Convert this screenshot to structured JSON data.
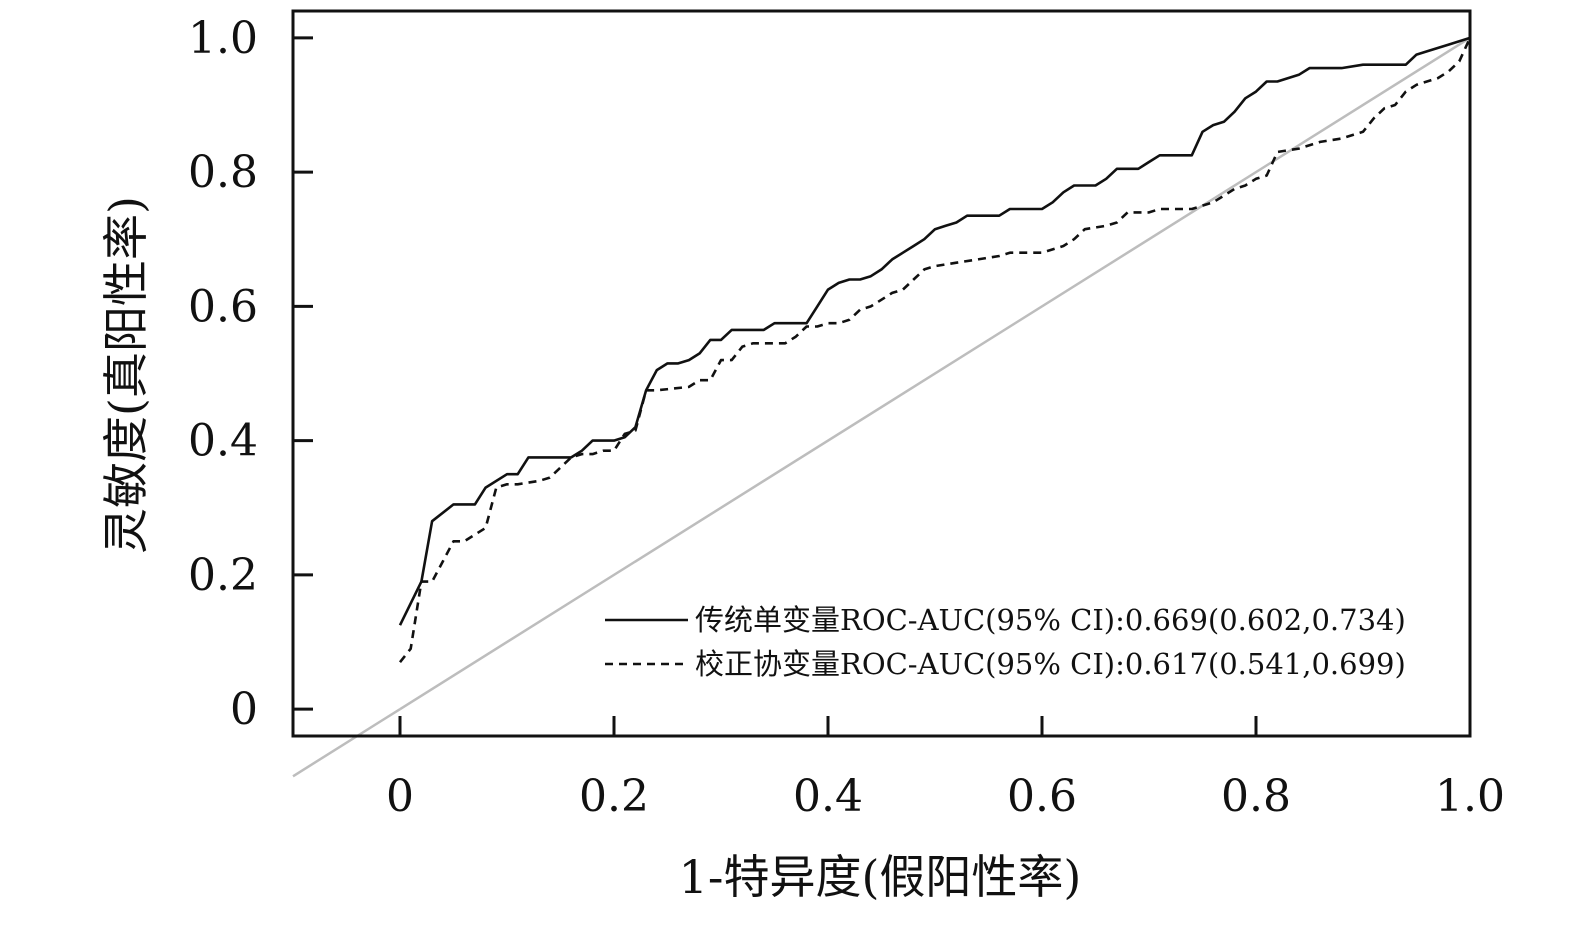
{
  "chart_data": {
    "type": "line",
    "title": "",
    "xlabel": "1-特异度(假阳性率)",
    "ylabel": "灵敏度(真阳性率)",
    "xlim": [
      -0.1,
      1.0
    ],
    "ylim": [
      -0.04,
      1.04
    ],
    "x_ticks": [
      0,
      0.2,
      0.4,
      0.6,
      0.8,
      1.0
    ],
    "x_tick_labels": [
      "0",
      "0.2",
      "0.4",
      "0.6",
      "0.8",
      "1.0"
    ],
    "y_ticks": [
      0,
      0.2,
      0.4,
      0.6,
      0.8,
      1.0
    ],
    "y_tick_labels": [
      "0",
      "0.2",
      "0.4",
      "0.6",
      "0.8",
      "1.0"
    ],
    "grid": false,
    "legend_position": "bottom-right",
    "reference_line": {
      "x": [
        0,
        1.0
      ],
      "y": [
        0,
        1.0
      ],
      "color": "#bdbdbd"
    },
    "series": [
      {
        "name": "传统单变量ROC-AUC(95% CI):0.669(0.602,0.734)",
        "style": "solid",
        "color": "#111111",
        "x": [
          0,
          0.02,
          0.03,
          0.05,
          0.07,
          0.08,
          0.1,
          0.11,
          0.12,
          0.14,
          0.16,
          0.17,
          0.18,
          0.2,
          0.21,
          0.22,
          0.23,
          0.24,
          0.25,
          0.26,
          0.27,
          0.28,
          0.29,
          0.3,
          0.31,
          0.32,
          0.34,
          0.35,
          0.38,
          0.39,
          0.4,
          0.41,
          0.42,
          0.43,
          0.44,
          0.45,
          0.46,
          0.47,
          0.48,
          0.49,
          0.5,
          0.51,
          0.52,
          0.53,
          0.56,
          0.57,
          0.6,
          0.61,
          0.62,
          0.63,
          0.65,
          0.66,
          0.67,
          0.69,
          0.7,
          0.71,
          0.74,
          0.75,
          0.76,
          0.77,
          0.78,
          0.79,
          0.8,
          0.81,
          0.82,
          0.84,
          0.85,
          0.86,
          0.88,
          0.9,
          0.91,
          0.94,
          0.95,
          0.96,
          0.98,
          1.0
        ],
        "y": [
          0.125,
          0.19,
          0.28,
          0.305,
          0.305,
          0.33,
          0.35,
          0.35,
          0.375,
          0.375,
          0.375,
          0.385,
          0.4,
          0.4,
          0.405,
          0.42,
          0.475,
          0.505,
          0.515,
          0.515,
          0.52,
          0.53,
          0.55,
          0.55,
          0.565,
          0.565,
          0.565,
          0.575,
          0.575,
          0.6,
          0.625,
          0.635,
          0.64,
          0.64,
          0.645,
          0.655,
          0.67,
          0.68,
          0.69,
          0.7,
          0.715,
          0.72,
          0.725,
          0.735,
          0.735,
          0.745,
          0.745,
          0.755,
          0.77,
          0.78,
          0.78,
          0.79,
          0.805,
          0.805,
          0.815,
          0.825,
          0.825,
          0.86,
          0.87,
          0.875,
          0.89,
          0.91,
          0.92,
          0.935,
          0.935,
          0.945,
          0.955,
          0.955,
          0.955,
          0.96,
          0.96,
          0.96,
          0.975,
          0.98,
          0.99,
          1.0
        ]
      },
      {
        "name": "校正协变量ROC-AUC(95% CI):0.617(0.541,0.699)",
        "style": "dashed",
        "color": "#111111",
        "x": [
          0,
          0.01,
          0.02,
          0.03,
          0.04,
          0.05,
          0.06,
          0.07,
          0.08,
          0.09,
          0.1,
          0.11,
          0.13,
          0.14,
          0.15,
          0.16,
          0.17,
          0.18,
          0.19,
          0.2,
          0.21,
          0.22,
          0.23,
          0.24,
          0.27,
          0.28,
          0.29,
          0.3,
          0.31,
          0.32,
          0.33,
          0.34,
          0.35,
          0.36,
          0.37,
          0.38,
          0.39,
          0.4,
          0.41,
          0.42,
          0.43,
          0.44,
          0.45,
          0.46,
          0.47,
          0.48,
          0.49,
          0.5,
          0.52,
          0.54,
          0.56,
          0.57,
          0.6,
          0.62,
          0.63,
          0.64,
          0.66,
          0.67,
          0.68,
          0.7,
          0.71,
          0.74,
          0.76,
          0.77,
          0.78,
          0.79,
          0.8,
          0.81,
          0.82,
          0.84,
          0.86,
          0.88,
          0.9,
          0.91,
          0.92,
          0.93,
          0.94,
          0.95,
          0.97,
          0.98,
          0.99,
          1.0
        ],
        "y": [
          0.07,
          0.09,
          0.19,
          0.19,
          0.22,
          0.25,
          0.25,
          0.26,
          0.27,
          0.33,
          0.335,
          0.335,
          0.34,
          0.345,
          0.36,
          0.375,
          0.38,
          0.38,
          0.385,
          0.385,
          0.41,
          0.415,
          0.475,
          0.475,
          0.48,
          0.49,
          0.49,
          0.52,
          0.52,
          0.54,
          0.545,
          0.545,
          0.545,
          0.545,
          0.555,
          0.57,
          0.57,
          0.575,
          0.575,
          0.58,
          0.595,
          0.6,
          0.61,
          0.62,
          0.625,
          0.64,
          0.655,
          0.66,
          0.665,
          0.67,
          0.675,
          0.68,
          0.68,
          0.69,
          0.7,
          0.715,
          0.72,
          0.725,
          0.74,
          0.74,
          0.745,
          0.745,
          0.755,
          0.765,
          0.775,
          0.78,
          0.79,
          0.795,
          0.83,
          0.835,
          0.845,
          0.85,
          0.86,
          0.88,
          0.895,
          0.9,
          0.92,
          0.93,
          0.94,
          0.95,
          0.965,
          1.0
        ]
      }
    ]
  }
}
